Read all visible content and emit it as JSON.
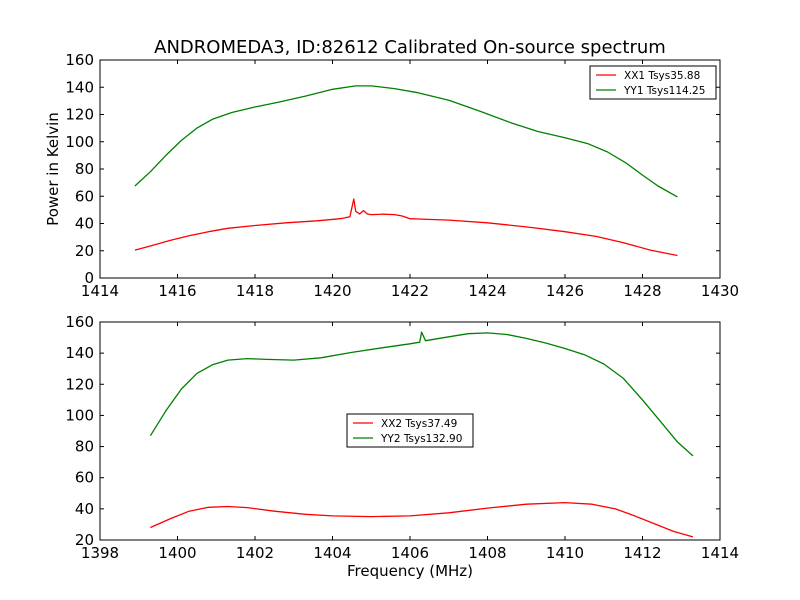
{
  "figure": {
    "title": "ANDROMEDA3, ID:82612 Calibrated On-source spectrum"
  },
  "chart_data": [
    {
      "type": "line",
      "xlabel": "",
      "ylabel": "Power in Kelvin",
      "xlim": [
        1414,
        1430
      ],
      "ylim": [
        0,
        160
      ],
      "xticks": [
        1414,
        1416,
        1418,
        1420,
        1422,
        1424,
        1426,
        1428,
        1430
      ],
      "yticks": [
        0,
        20,
        40,
        60,
        80,
        100,
        120,
        140,
        160
      ],
      "legend_position": "top-right",
      "grid": false,
      "series": [
        {
          "name": "XX1 Tsys35.88",
          "color": "#ff0000",
          "x": [
            1414.9,
            1415.3,
            1415.8,
            1416.3,
            1416.8,
            1417.3,
            1418.0,
            1418.8,
            1419.6,
            1420.2,
            1420.45,
            1420.55,
            1420.6,
            1420.7,
            1420.8,
            1420.9,
            1421.0,
            1421.3,
            1421.6,
            1421.8,
            1422.0,
            1422.3,
            1423.0,
            1424.0,
            1425.0,
            1426.0,
            1426.8,
            1427.5,
            1428.2,
            1428.9
          ],
          "y": [
            20.5,
            23.5,
            27.5,
            31.0,
            34.0,
            36.5,
            38.5,
            40.5,
            42.0,
            43.5,
            45.0,
            58.0,
            49.0,
            47.0,
            49.5,
            47.0,
            46.5,
            46.8,
            46.5,
            45.5,
            43.5,
            43.2,
            42.5,
            40.5,
            37.5,
            34.0,
            30.5,
            26.0,
            20.5,
            16.5
          ]
        },
        {
          "name": "YY1 Tsys114.25",
          "color": "#008000",
          "x": [
            1414.9,
            1415.3,
            1415.7,
            1416.1,
            1416.5,
            1416.9,
            1417.4,
            1418.0,
            1418.6,
            1419.3,
            1420.0,
            1420.6,
            1421.0,
            1421.6,
            1422.2,
            1423.0,
            1423.8,
            1424.6,
            1425.3,
            1426.0,
            1426.6,
            1427.1,
            1427.6,
            1428.0,
            1428.4,
            1428.9
          ],
          "y": [
            67.5,
            78.0,
            90.0,
            101.0,
            110.0,
            116.5,
            121.5,
            125.5,
            129.0,
            133.5,
            138.5,
            141.0,
            141.0,
            139.0,
            136.0,
            130.5,
            122.5,
            114.0,
            107.5,
            103.0,
            98.5,
            92.5,
            84.0,
            75.5,
            67.5,
            59.5
          ]
        }
      ]
    },
    {
      "type": "line",
      "xlabel": "Frequency (MHz)",
      "ylabel": "",
      "xlim": [
        1398,
        1414
      ],
      "ylim": [
        20,
        160
      ],
      "xticks": [
        1398,
        1400,
        1402,
        1404,
        1406,
        1408,
        1410,
        1412,
        1414
      ],
      "yticks": [
        20,
        40,
        60,
        80,
        100,
        120,
        140,
        160
      ],
      "legend_position": "center",
      "grid": false,
      "series": [
        {
          "name": "XX2 Tsys37.49",
          "color": "#ff0000",
          "x": [
            1399.3,
            1399.8,
            1400.3,
            1400.8,
            1401.3,
            1401.8,
            1402.5,
            1403.3,
            1404.0,
            1405.0,
            1406.0,
            1407.0,
            1408.0,
            1409.0,
            1410.0,
            1410.7,
            1411.3,
            1411.8,
            1412.3,
            1412.8,
            1413.3
          ],
          "y": [
            28.0,
            33.5,
            38.5,
            41.0,
            41.5,
            40.8,
            38.5,
            36.5,
            35.5,
            35.0,
            35.5,
            37.5,
            40.5,
            43.0,
            44.0,
            43.0,
            40.0,
            35.5,
            30.5,
            25.5,
            22.0
          ]
        },
        {
          "name": "YY2 Tsys132.90",
          "color": "#008000",
          "x": [
            1399.3,
            1399.7,
            1400.1,
            1400.5,
            1400.9,
            1401.3,
            1401.8,
            1402.3,
            1403.0,
            1403.7,
            1404.5,
            1405.3,
            1406.0,
            1406.25,
            1406.3,
            1406.4,
            1407.0,
            1407.5,
            1408.0,
            1408.5,
            1409.0,
            1409.5,
            1410.0,
            1410.5,
            1411.0,
            1411.5,
            1412.0,
            1412.5,
            1412.9,
            1413.3
          ],
          "y": [
            87.0,
            103.0,
            117.0,
            127.0,
            132.5,
            135.5,
            136.5,
            136.0,
            135.5,
            137.0,
            140.5,
            143.5,
            146.0,
            147.0,
            153.5,
            148.0,
            150.5,
            152.5,
            153.0,
            152.0,
            149.5,
            146.5,
            143.0,
            139.0,
            133.0,
            124.0,
            110.0,
            95.0,
            83.0,
            74.0
          ]
        }
      ]
    }
  ]
}
